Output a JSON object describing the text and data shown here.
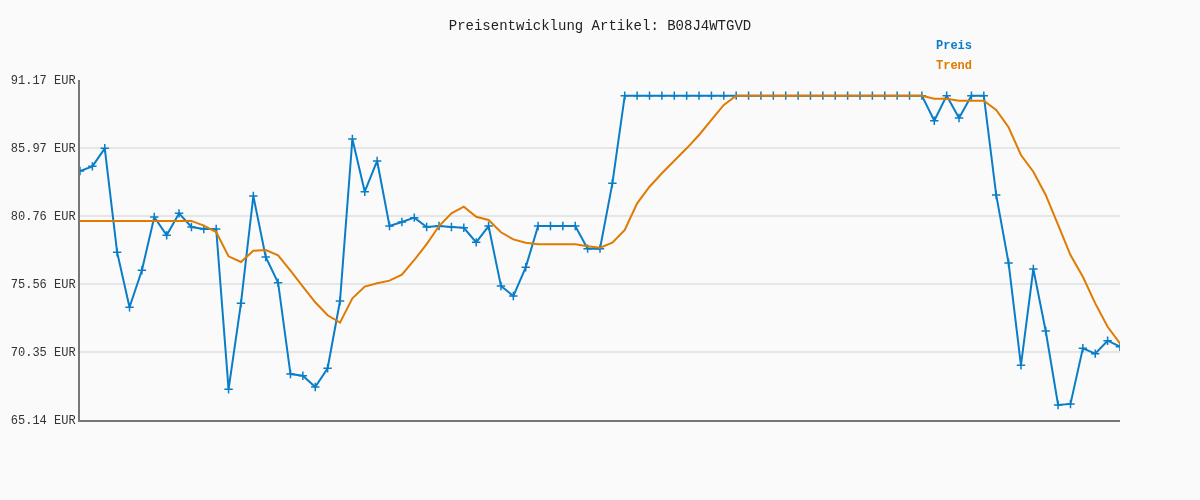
{
  "chart_data": {
    "type": "line",
    "title": "Preisentwicklung Artikel: B08J4WTGVD",
    "categories": [
      null,
      null,
      null,
      null,
      null,
      null,
      null,
      null,
      null,
      null,
      null,
      null,
      null,
      null,
      null,
      null,
      null,
      null,
      null,
      null,
      null,
      null,
      null,
      null,
      null,
      null,
      null,
      null,
      null,
      null,
      null,
      null,
      null,
      null,
      null,
      null,
      null,
      null,
      null,
      null,
      null,
      null,
      null,
      null,
      null,
      null,
      null,
      null,
      null,
      null,
      null,
      null,
      null,
      null,
      null,
      null,
      null,
      null,
      null,
      null,
      null,
      null,
      null,
      null,
      null,
      null,
      null,
      null,
      null,
      null,
      null,
      null,
      null,
      null,
      null,
      null,
      null,
      null,
      null,
      null,
      null,
      null,
      null,
      null,
      null
    ],
    "series": [
      {
        "name": "Preis",
        "color": "#0a7dc8",
        "marker": "cross",
        "values": [
          84.2,
          84.56,
          85.94,
          77.98,
          73.77,
          76.6,
          80.68,
          79.28,
          80.96,
          79.92,
          79.76,
          79.76,
          67.49,
          74.07,
          82.29,
          77.62,
          75.65,
          68.66,
          68.53,
          67.67,
          69.1,
          74.25,
          86.65,
          82.62,
          84.97,
          79.99,
          80.3,
          80.63,
          79.92,
          79.99,
          79.92,
          79.86,
          78.74,
          79.99,
          75.4,
          74.63,
          76.83,
          79.99,
          79.99,
          79.99,
          79.99,
          78.26,
          78.26,
          83.26,
          89.97,
          89.97,
          89.97,
          89.97,
          89.97,
          89.97,
          89.97,
          89.97,
          89.97,
          89.97,
          89.97,
          89.97,
          89.97,
          89.97,
          89.97,
          89.97,
          89.97,
          89.97,
          89.97,
          89.97,
          89.97,
          89.97,
          89.97,
          89.97,
          89.97,
          88.05,
          89.97,
          88.26,
          89.97,
          89.97,
          82.37,
          77.16,
          69.33,
          76.7,
          71.95,
          66.29,
          66.37,
          70.63,
          70.22,
          71.21,
          70.75
        ]
      },
      {
        "name": "Trend",
        "color": "#e07b00",
        "marker": "none",
        "values": [
          80.38,
          80.38,
          80.38,
          80.38,
          80.38,
          80.38,
          80.38,
          80.38,
          80.38,
          80.38,
          80.02,
          79.53,
          77.67,
          77.24,
          78.1,
          78.15,
          77.75,
          76.57,
          75.35,
          74.15,
          73.16,
          72.59,
          74.46,
          75.35,
          75.61,
          75.81,
          76.26,
          77.39,
          78.61,
          79.99,
          80.96,
          81.47,
          80.7,
          80.45,
          79.51,
          78.97,
          78.71,
          78.59,
          78.59,
          78.59,
          78.59,
          78.44,
          78.33,
          78.71,
          79.69,
          81.73,
          83.0,
          84.03,
          84.99,
          85.94,
          86.96,
          88.11,
          89.26,
          89.97,
          89.97,
          89.97,
          89.97,
          89.97,
          89.97,
          89.97,
          89.97,
          89.97,
          89.97,
          89.97,
          89.97,
          89.97,
          89.97,
          89.97,
          89.97,
          89.74,
          89.74,
          89.59,
          89.59,
          89.59,
          88.87,
          87.55,
          85.43,
          84.15,
          82.37,
          80.07,
          77.77,
          76.11,
          74.07,
          72.28,
          71.01
        ]
      }
    ],
    "ylim": [
      65.14,
      91.17
    ],
    "yticks": [
      {
        "value": 65.14,
        "label": "65.14 EUR"
      },
      {
        "value": 70.35,
        "label": "70.35 EUR"
      },
      {
        "value": 75.56,
        "label": "75.56 EUR"
      },
      {
        "value": 80.76,
        "label": "80.76 EUR"
      },
      {
        "value": 85.97,
        "label": "85.97 EUR"
      },
      {
        "value": 91.17,
        "label": "91.17 EUR"
      }
    ],
    "tick_labels": "y",
    "grid": "y",
    "legend": "top right",
    "line_style": "solid"
  }
}
